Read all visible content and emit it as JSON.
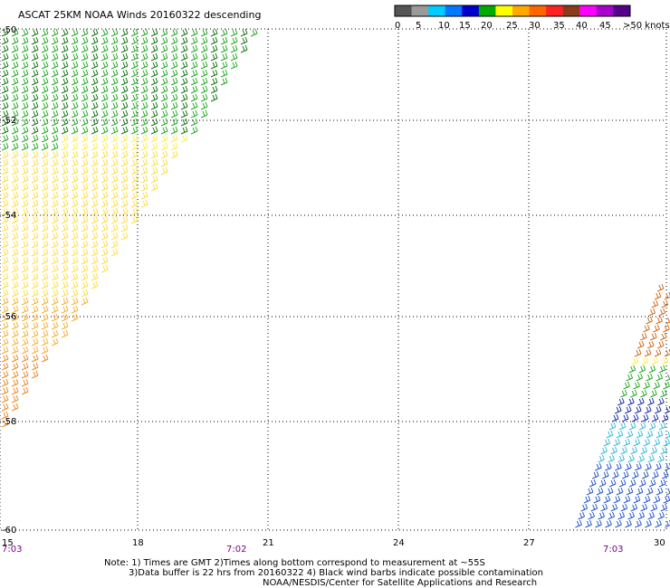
{
  "title": "ASCAT 25KM NOAA Winds 20160322 descending",
  "legend": {
    "colors": [
      "#555555",
      "#9a9a9a",
      "#00ccff",
      "#0077ff",
      "#0000cc",
      "#00aa00",
      "#ffff00",
      "#ffaa00",
      "#ff6600",
      "#ff2222",
      "#8b3a1a",
      "#ff00ff",
      "#aa00cc",
      "#550088"
    ],
    "labels": [
      "0",
      "5",
      "10",
      "15",
      "20",
      "25",
      "30",
      "35",
      "40",
      "45",
      ">50 knots"
    ]
  },
  "axes": {
    "lon_ticks": [
      "15",
      "18",
      "21",
      "24",
      "27",
      "30"
    ],
    "lat_ticks": [
      "-50",
      "-52",
      "-54",
      "-56",
      "-58",
      "-60"
    ]
  },
  "times": [
    "7:03",
    "7:02",
    "7:03"
  ],
  "notes": [
    "Note: 1) Times are GMT 2)Times along bottom correspond to measurement at ~55S",
    "3)Data buffer is 22 hrs from 20160322 4) Black wind barbs indicate possible contamination",
    "NOAA/NESDIS/Center for Satellite Applications and Research"
  ],
  "colors": {
    "grid": "#000000",
    "time_labels": "#800080",
    "barb_green": "#22aa22",
    "barb_yellow": "#ffee44",
    "barb_orange": "#ee8822",
    "barb_blue": "#2255cc",
    "barb_cyan": "#33bbdd"
  }
}
